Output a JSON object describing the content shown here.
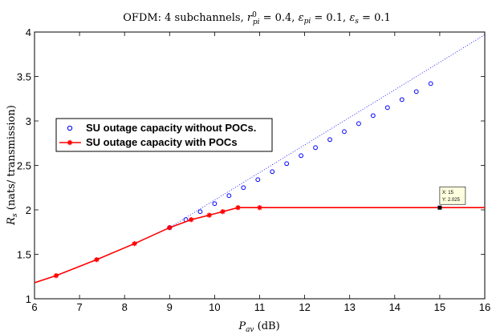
{
  "chart_data": {
    "type": "line",
    "title_prefix": "OFDM: 4 subchannels,",
    "title_params": [
      {
        "sym": "r",
        "sup": "0",
        "sub": "pi",
        "value": "= 0.4,"
      },
      {
        "sym": "ε",
        "sub": "pi",
        "value": "= 0.1,"
      },
      {
        "sym": "ε",
        "sub": "s",
        "value": "= 0.1"
      }
    ],
    "xlabel": {
      "sym": "P",
      "sub": "av",
      "unit": "(dB)"
    },
    "ylabel": {
      "sym": "R",
      "sub": "s",
      "unit": "(nats/ transmission)"
    },
    "xlim": [
      6,
      16
    ],
    "ylim": [
      1,
      4
    ],
    "xticks": [
      "6",
      "7",
      "8",
      "9",
      "10",
      "11",
      "12",
      "13",
      "14",
      "15",
      "16"
    ],
    "yticks": [
      "1",
      "1.5",
      "2",
      "2.5",
      "3",
      "3.5",
      "4"
    ],
    "grid": false,
    "legend_position": "upper-left",
    "series": [
      {
        "name": "SU outage capacity without POCs.",
        "color": "#0000ff",
        "style": "dotted-with-circles",
        "x": [
          9.0,
          9.36,
          9.68,
          10.0,
          10.32,
          10.64,
          10.96,
          11.28,
          11.6,
          11.92,
          12.24,
          12.56,
          12.88,
          13.2,
          13.52,
          13.84,
          14.16,
          14.48,
          14.8
        ],
        "y": [
          1.8,
          1.89,
          1.98,
          2.07,
          2.16,
          2.25,
          2.34,
          2.43,
          2.52,
          2.61,
          2.7,
          2.79,
          2.88,
          2.97,
          3.06,
          3.15,
          3.24,
          3.33,
          3.42
        ],
        "line_x": [
          9.0,
          16.0
        ],
        "line_y": [
          1.8,
          3.97
        ]
      },
      {
        "name": "SU outage capacity with POCs",
        "color": "#ff0000",
        "style": "solid-with-stars",
        "x": [
          6.0,
          6.48,
          7.38,
          8.22,
          9.0,
          9.48,
          9.88,
          10.18,
          10.52,
          11.0,
          16.0
        ],
        "y": [
          1.18,
          1.26,
          1.44,
          1.62,
          1.8,
          1.89,
          1.94,
          1.98,
          2.025,
          2.025,
          2.025
        ],
        "marker_x": [
          6.48,
          7.38,
          8.22,
          9.0,
          9.48,
          9.88,
          10.18,
          10.52,
          11.0
        ],
        "marker_y": [
          1.26,
          1.44,
          1.62,
          1.8,
          1.89,
          1.94,
          1.98,
          2.025,
          2.025
        ]
      }
    ],
    "datatip": {
      "x": 15,
      "y": 2.025,
      "text_x": "X: 15",
      "text_y": "Y: 2.025"
    }
  },
  "colors": {
    "axis": "#000000",
    "datatip_bg": "#ffffe0"
  }
}
